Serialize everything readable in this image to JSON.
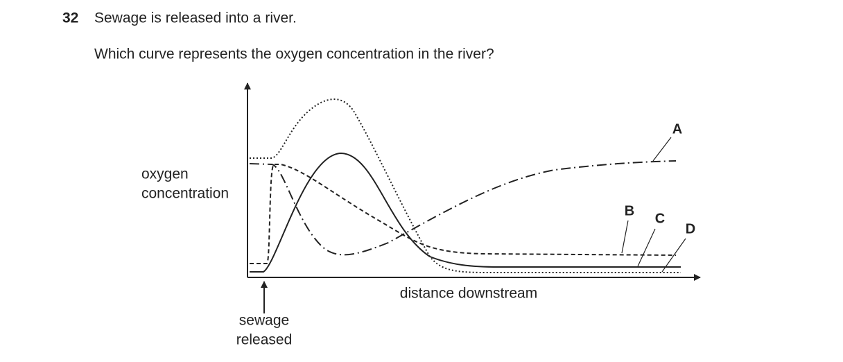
{
  "question": {
    "number": "32",
    "stem": "Sewage is released into a river.",
    "prompt": "Which curve represents the oxygen concentration in the river?"
  },
  "graph": {
    "y_label": [
      "oxygen",
      "concentration"
    ],
    "x_label": "distance downstream",
    "arrow_label": [
      "sewage",
      "released"
    ],
    "curves": [
      "A",
      "B",
      "C",
      "D"
    ]
  }
}
